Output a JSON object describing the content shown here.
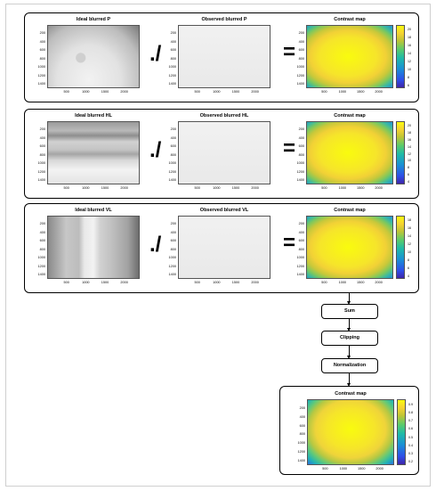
{
  "rows": [
    {
      "ideal_title": "Ideal blurred P",
      "observed_title": "Observed blurred P",
      "contrast_title": "Contrast map",
      "divide_op": "./",
      "equals_op": "=",
      "pattern": "P",
      "cbar_ticks": [
        "20",
        "18",
        "16",
        "14",
        "12",
        "10",
        "8",
        "6"
      ]
    },
    {
      "ideal_title": "Ideal blurred HL",
      "observed_title": "Observed blurred HL",
      "contrast_title": "Contrast map",
      "divide_op": "./",
      "equals_op": "=",
      "pattern": "HL",
      "cbar_ticks": [
        "20",
        "18",
        "16",
        "14",
        "12",
        "10",
        "8",
        "6",
        "4"
      ]
    },
    {
      "ideal_title": "Ideal blurred VL",
      "observed_title": "Observed blurred VL",
      "contrast_title": "Contrast map",
      "divide_op": "./",
      "equals_op": "=",
      "pattern": "VL",
      "cbar_ticks": [
        "18",
        "16",
        "14",
        "12",
        "10",
        "8",
        "6",
        "4"
      ]
    }
  ],
  "axis": {
    "yticks": [
      "200",
      "400",
      "600",
      "800",
      "1000",
      "1200",
      "1400"
    ],
    "xticks": [
      "500",
      "1000",
      "1500",
      "2000"
    ]
  },
  "steps": [
    "Sum",
    "Clipping",
    "Normalization"
  ],
  "final": {
    "title": "Contrast map",
    "cbar_ticks": [
      "0.9",
      "0.8",
      "0.7",
      "0.6",
      "0.5",
      "0.4",
      "0.3",
      "0.2"
    ]
  }
}
